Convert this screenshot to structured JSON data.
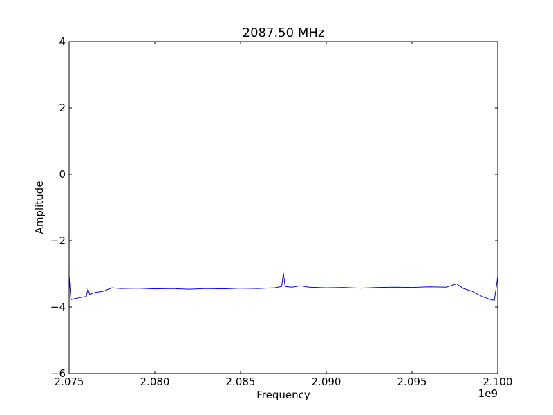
{
  "chart_data": {
    "type": "line",
    "title": "2087.50 MHz",
    "xlabel": "Frequency",
    "ylabel": "Amplitude",
    "xlim": [
      2075000000,
      2100000000
    ],
    "ylim": [
      -6,
      4
    ],
    "x_offset_text": "1e9",
    "xticks": [
      2075000000,
      2080000000,
      2085000000,
      2090000000,
      2095000000,
      2100000000
    ],
    "xtick_labels": [
      "2.075",
      "2.080",
      "2.085",
      "2.090",
      "2.095",
      "2.100"
    ],
    "yticks": [
      4,
      2,
      0,
      -2,
      -4,
      -6
    ],
    "ytick_labels": [
      "4",
      "2",
      "0",
      "−2",
      "−4",
      "−6"
    ],
    "grid": false,
    "series": [
      {
        "color": "#0000ff",
        "x": [
          2075000000,
          2075100000,
          2075300000,
          2075600000,
          2076000000,
          2076100000,
          2076200000,
          2076500000,
          2077000000,
          2077500000,
          2078000000,
          2079000000,
          2080000000,
          2081000000,
          2082000000,
          2083000000,
          2084000000,
          2085000000,
          2086000000,
          2087000000,
          2087400000,
          2087500000,
          2087600000,
          2088000000,
          2088500000,
          2089000000,
          2090000000,
          2091000000,
          2092000000,
          2093000000,
          2094000000,
          2095000000,
          2096000000,
          2097000000,
          2097600000,
          2098000000,
          2098500000,
          2099000000,
          2099500000,
          2099800000,
          2099900000,
          2100000000
        ],
        "y": [
          -3.05,
          -3.78,
          -3.75,
          -3.72,
          -3.68,
          -3.45,
          -3.62,
          -3.56,
          -3.52,
          -3.42,
          -3.44,
          -3.43,
          -3.45,
          -3.44,
          -3.46,
          -3.44,
          -3.45,
          -3.43,
          -3.44,
          -3.42,
          -3.38,
          -2.97,
          -3.38,
          -3.4,
          -3.36,
          -3.4,
          -3.42,
          -3.41,
          -3.43,
          -3.41,
          -3.4,
          -3.41,
          -3.39,
          -3.4,
          -3.3,
          -3.44,
          -3.52,
          -3.66,
          -3.76,
          -3.8,
          -3.45,
          -3.08
        ]
      }
    ]
  }
}
